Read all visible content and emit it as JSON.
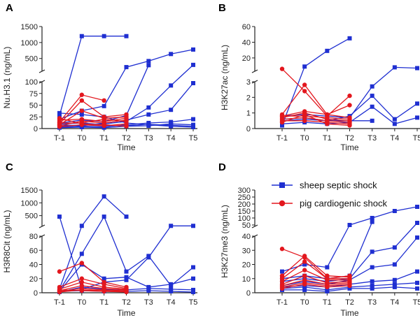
{
  "colors": {
    "sheep": "#1f2fd1",
    "pig": "#e3171e"
  },
  "legend": {
    "placement": "top-right of panel D",
    "items": [
      {
        "label": "sheep septic shock",
        "marker": "square",
        "color": "#1f2fd1"
      },
      {
        "label": "pig cardiogenic shock",
        "marker": "circle",
        "color": "#e3171e"
      }
    ]
  },
  "chart_data": [
    {
      "panel": "A",
      "type": "line",
      "ylabel": "Nu.H3.1 (ng/mL)",
      "xlabel": "Time",
      "categories": [
        "T-1",
        "T0",
        "T1",
        "T2",
        "T3",
        "T4",
        "T5"
      ],
      "y_axis_broken": true,
      "upper_ylim": [
        0,
        1500
      ],
      "upper_ticks": [
        0,
        500,
        1000,
        1500
      ],
      "lower_ylim": [
        0,
        100
      ],
      "lower_ticks": [
        0,
        25,
        50,
        75,
        100
      ],
      "series": [
        {
          "group": "sheep",
          "values": [
            28,
            1200,
            1200,
            1200,
            null,
            null,
            null
          ]
        },
        {
          "group": "sheep",
          "values": [
            20,
            38,
            48,
            230,
            420,
            640,
            780
          ]
        },
        {
          "group": "sheep",
          "values": [
            12,
            18,
            15,
            28,
            290,
            null,
            null
          ]
        },
        {
          "group": "sheep",
          "values": [
            5,
            8,
            10,
            15,
            45,
            92,
            300
          ]
        },
        {
          "group": "sheep",
          "values": [
            8,
            6,
            12,
            18,
            30,
            40,
            97
          ]
        },
        {
          "group": "sheep",
          "values": [
            3,
            5,
            4,
            8,
            12,
            14,
            20
          ]
        },
        {
          "group": "sheep",
          "values": [
            2,
            3,
            2,
            5,
            6,
            10,
            8
          ]
        },
        {
          "group": "sheep",
          "values": [
            10,
            12,
            8,
            6,
            9,
            7,
            5
          ]
        },
        {
          "group": "sheep",
          "values": [
            33,
            30,
            25,
            12,
            8,
            5,
            3
          ]
        },
        {
          "group": "pig",
          "values": [
            14,
            72,
            60,
            null,
            null,
            null,
            null
          ]
        },
        {
          "group": "pig",
          "values": [
            10,
            60,
            25,
            30,
            null,
            null,
            null
          ]
        },
        {
          "group": "pig",
          "values": [
            8,
            38,
            22,
            25,
            null,
            null,
            null
          ]
        },
        {
          "group": "pig",
          "values": [
            18,
            20,
            15,
            22,
            null,
            null,
            null
          ]
        },
        {
          "group": "pig",
          "values": [
            6,
            16,
            12,
            18,
            null,
            null,
            null
          ]
        },
        {
          "group": "pig",
          "values": [
            12,
            12,
            20,
            15,
            null,
            null,
            null
          ]
        },
        {
          "group": "pig",
          "values": [
            4,
            8,
            6,
            10,
            null,
            null,
            null
          ]
        },
        {
          "group": "pig",
          "values": [
            22,
            10,
            8,
            5,
            null,
            null,
            null
          ]
        }
      ]
    },
    {
      "panel": "B",
      "type": "line",
      "ylabel": "H3K27ac (ng/mL)",
      "xlabel": "Time",
      "categories": [
        "T-1",
        "T0",
        "T1",
        "T2",
        "T3",
        "T4",
        "T5"
      ],
      "y_axis_broken": true,
      "upper_ylim": [
        0,
        60
      ],
      "upper_ticks": [
        0,
        20,
        40,
        60
      ],
      "lower_ylim": [
        0,
        3
      ],
      "lower_ticks": [
        0,
        1,
        2,
        3
      ],
      "series": [
        {
          "group": "sheep",
          "values": [
            0.2,
            9,
            29,
            45,
            null,
            null,
            null
          ]
        },
        {
          "group": "sheep",
          "values": [
            0.8,
            0.9,
            0.8,
            0.7,
            2.7,
            8,
            7
          ]
        },
        {
          "group": "sheep",
          "values": [
            0.5,
            0.6,
            0.5,
            0.8,
            2.1,
            0.6,
            1.6
          ]
        },
        {
          "group": "sheep",
          "values": [
            0.3,
            0.4,
            0.3,
            0.4,
            1.4,
            0.3,
            0.7
          ]
        },
        {
          "group": "sheep",
          "values": [
            0.6,
            0.7,
            0.5,
            0.5,
            0.5,
            null,
            null
          ]
        },
        {
          "group": "pig",
          "values": [
            6,
            2.4,
            0.8,
            2.1,
            null,
            null,
            null
          ]
        },
        {
          "group": "pig",
          "values": [
            0.9,
            2.8,
            0.9,
            1.5,
            null,
            null,
            null
          ]
        },
        {
          "group": "pig",
          "values": [
            0.8,
            1.1,
            0.9,
            0.7,
            null,
            null,
            null
          ]
        },
        {
          "group": "pig",
          "values": [
            0.7,
            1.0,
            0.6,
            0.5,
            null,
            null,
            null
          ]
        },
        {
          "group": "pig",
          "values": [
            0.8,
            0.8,
            0.7,
            0.6,
            null,
            null,
            null
          ]
        },
        {
          "group": "pig",
          "values": [
            0.6,
            0.7,
            0.5,
            0.4,
            null,
            null,
            null
          ]
        },
        {
          "group": "pig",
          "values": [
            0.5,
            0.5,
            0.4,
            0.3,
            null,
            null,
            null
          ]
        },
        {
          "group": "pig",
          "values": [
            0.4,
            0.9,
            0.3,
            0.2,
            null,
            null,
            null
          ]
        }
      ]
    },
    {
      "panel": "C",
      "type": "line",
      "ylabel": "H3R8Cit (ng/mL)",
      "xlabel": "Time",
      "categories": [
        "T-1",
        "T0",
        "T1",
        "T2",
        "T3",
        "T4",
        "T5"
      ],
      "y_axis_broken": true,
      "upper_ylim": [
        0,
        1500
      ],
      "upper_ticks": [
        0,
        500,
        1000,
        1500
      ],
      "lower_ylim": [
        0,
        80
      ],
      "lower_ticks": [
        0,
        20,
        40,
        60,
        80
      ],
      "series": [
        {
          "group": "sheep",
          "values": [
            460,
            5,
            15,
            18,
            50,
            100,
            100
          ]
        },
        {
          "group": "sheep",
          "values": [
            5,
            100,
            1250,
            460,
            null,
            null,
            null
          ]
        },
        {
          "group": "sheep",
          "values": [
            3,
            55,
            460,
            30,
            52,
            10,
            36
          ]
        },
        {
          "group": "sheep",
          "values": [
            2,
            40,
            20,
            22,
            8,
            12,
            20
          ]
        },
        {
          "group": "sheep",
          "values": [
            1,
            8,
            5,
            4,
            6,
            5,
            4
          ]
        },
        {
          "group": "sheep",
          "values": [
            2,
            3,
            2,
            2,
            3,
            2,
            1
          ]
        },
        {
          "group": "pig",
          "values": [
            30,
            42,
            15,
            8,
            null,
            null,
            null
          ]
        },
        {
          "group": "pig",
          "values": [
            8,
            20,
            12,
            6,
            null,
            null,
            null
          ]
        },
        {
          "group": "pig",
          "values": [
            5,
            15,
            8,
            5,
            null,
            null,
            null
          ]
        },
        {
          "group": "pig",
          "values": [
            3,
            10,
            6,
            4,
            null,
            null,
            null
          ]
        },
        {
          "group": "pig",
          "values": [
            2,
            6,
            4,
            3,
            null,
            null,
            null
          ]
        },
        {
          "group": "pig",
          "values": [
            1,
            4,
            3,
            2,
            null,
            null,
            null
          ]
        },
        {
          "group": "pig",
          "values": [
            4,
            3,
            2,
            1,
            null,
            null,
            null
          ]
        }
      ]
    },
    {
      "panel": "D",
      "type": "line",
      "ylabel": "H3K27me3 (ng/mL)",
      "xlabel": "Time",
      "categories": [
        "T-1",
        "T0",
        "T1",
        "T2",
        "T3",
        "T4",
        "T5"
      ],
      "y_axis_broken": true,
      "upper_ylim": [
        0,
        300
      ],
      "upper_ticks": [
        0,
        50,
        100,
        150,
        200,
        250,
        300
      ],
      "lower_ylim": [
        0,
        40
      ],
      "lower_ticks": [
        0,
        10,
        20,
        30,
        40
      ],
      "series": [
        {
          "group": "sheep",
          "values": [
            15,
            20,
            18,
            50,
            100,
            150,
            180
          ]
        },
        {
          "group": "sheep",
          "values": [
            10,
            12,
            10,
            12,
            72,
            null,
            null
          ]
        },
        {
          "group": "sheep",
          "values": [
            8,
            10,
            8,
            10,
            29,
            32,
            65
          ]
        },
        {
          "group": "sheep",
          "values": [
            5,
            8,
            6,
            9,
            18,
            20,
            39
          ]
        },
        {
          "group": "sheep",
          "values": [
            4,
            5,
            4,
            6,
            8,
            9,
            15
          ]
        },
        {
          "group": "sheep",
          "values": [
            3,
            4,
            2,
            4,
            5,
            6,
            7
          ]
        },
        {
          "group": "sheep",
          "values": [
            2,
            2,
            1,
            3,
            3,
            4,
            3
          ]
        },
        {
          "group": "pig",
          "values": [
            31,
            25,
            10,
            12,
            null,
            null,
            null
          ]
        },
        {
          "group": "pig",
          "values": [
            12,
            26,
            12,
            11,
            null,
            null,
            null
          ]
        },
        {
          "group": "pig",
          "values": [
            10,
            22,
            10,
            10,
            null,
            null,
            null
          ]
        },
        {
          "group": "pig",
          "values": [
            8,
            16,
            9,
            9,
            null,
            null,
            null
          ]
        },
        {
          "group": "pig",
          "values": [
            6,
            12,
            7,
            8,
            null,
            null,
            null
          ]
        },
        {
          "group": "pig",
          "values": [
            5,
            9,
            6,
            7,
            null,
            null,
            null
          ]
        },
        {
          "group": "pig",
          "values": [
            4,
            7,
            5,
            6,
            null,
            null,
            null
          ]
        },
        {
          "group": "pig",
          "values": [
            3,
            6,
            4,
            5,
            null,
            null,
            null
          ]
        }
      ]
    }
  ]
}
